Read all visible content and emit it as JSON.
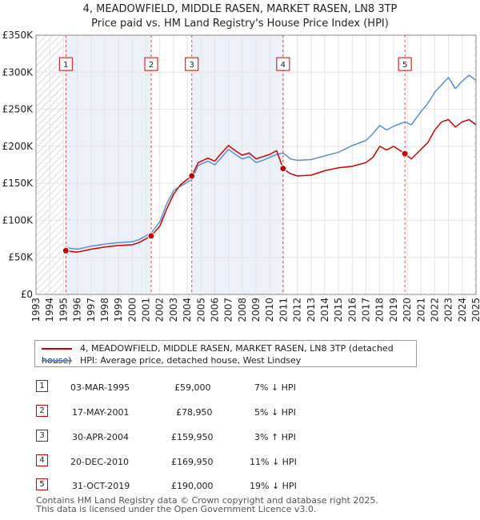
{
  "chart_data": {
    "type": "line",
    "title": "4, MEADOWFIELD, MIDDLE RASEN, MARKET RASEN, LN8 3TP",
    "subtitle": "Price paid vs. HM Land Registry's House Price Index (HPI)",
    "xlim": [
      1993,
      2025
    ],
    "ylim": [
      0,
      350000
    ],
    "y_ticks": [
      0,
      50000,
      100000,
      150000,
      200000,
      250000,
      300000,
      350000
    ],
    "y_tick_labels": [
      "£0",
      "£50K",
      "£100K",
      "£150K",
      "£200K",
      "£250K",
      "£300K",
      "£350K"
    ],
    "x_tick_labels": [
      "1993",
      "1994",
      "1995",
      "1996",
      "1997",
      "1998",
      "1999",
      "2000",
      "2001",
      "2002",
      "2003",
      "2004",
      "2005",
      "2006",
      "2007",
      "2008",
      "2009",
      "2010",
      "2011",
      "2012",
      "2013",
      "2014",
      "2015",
      "2016",
      "2017",
      "2018",
      "2019",
      "2020",
      "2021",
      "2022",
      "2023",
      "2024",
      "2025"
    ],
    "grid": true,
    "series": [
      {
        "name": "4, MEADOWFIELD, MIDDLE RASEN, MARKET RASEN, LN8 3TP (detached house)",
        "color": "#cc0000",
        "x": [
          1995.17,
          1996,
          1997,
          1998,
          1999,
          2000,
          2000.5,
          2001.38,
          2002,
          2002.5,
          2003,
          2003.5,
          2004.33,
          2004.8,
          2005.5,
          2006,
          2006.5,
          2007,
          2007.5,
          2008,
          2008.5,
          2009,
          2009.5,
          2010,
          2010.5,
          2010.97,
          2011.5,
          2012,
          2013,
          2014,
          2015,
          2016,
          2017,
          2017.5,
          2018,
          2018.5,
          2019,
          2019.83,
          2020.3,
          2021,
          2021.5,
          2022,
          2022.5,
          2023,
          2023.5,
          2024,
          2024.5,
          2025
        ],
        "values": [
          59000,
          57000,
          61000,
          64000,
          66000,
          67000,
          70000,
          78950,
          92000,
          115000,
          135000,
          148000,
          159950,
          178000,
          184000,
          180000,
          191000,
          201000,
          194000,
          188000,
          191000,
          183000,
          186000,
          189000,
          194000,
          169950,
          163000,
          160000,
          161000,
          167000,
          171000,
          173000,
          178000,
          185000,
          200000,
          195000,
          200000,
          190000,
          183000,
          196000,
          205000,
          222000,
          233000,
          236000,
          226000,
          233000,
          236000,
          229000
        ]
      },
      {
        "name": "HPI: Average price, detached house, West Lindsey",
        "color": "#5b8fd0",
        "x": [
          1995.17,
          1996,
          1997,
          1998,
          1999,
          2000,
          2000.5,
          2001.38,
          2002,
          2002.5,
          2003,
          2003.5,
          2004.33,
          2004.8,
          2005.5,
          2006,
          2006.5,
          2007,
          2007.5,
          2008,
          2008.5,
          2009,
          2009.5,
          2010,
          2010.5,
          2010.97,
          2011.5,
          2012,
          2013,
          2014,
          2015,
          2016,
          2017,
          2017.5,
          2018,
          2018.5,
          2019,
          2019.83,
          2020.3,
          2021,
          2021.5,
          2022,
          2022.5,
          2023,
          2023.5,
          2024,
          2024.5,
          2025
        ],
        "values": [
          63000,
          61000,
          65000,
          68000,
          70000,
          71000,
          74000,
          83000,
          98000,
          122000,
          140000,
          146000,
          155000,
          174000,
          180000,
          175000,
          185000,
          196000,
          189000,
          183000,
          186000,
          178000,
          181000,
          185000,
          189000,
          191000,
          183000,
          181000,
          182000,
          187000,
          192000,
          201000,
          208000,
          217000,
          228000,
          222000,
          227000,
          233000,
          229000,
          247000,
          258000,
          273000,
          283000,
          293000,
          278000,
          288000,
          296000,
          289000
        ]
      }
    ],
    "sales": [
      {
        "num": "1",
        "x": 1995.17,
        "value": 59000
      },
      {
        "num": "2",
        "x": 2001.38,
        "value": 78950
      },
      {
        "num": "3",
        "x": 2004.33,
        "value": 159950
      },
      {
        "num": "4",
        "x": 2010.97,
        "value": 169950
      },
      {
        "num": "5",
        "x": 2019.83,
        "value": 190000
      }
    ],
    "hatch_ranges": [
      [
        1993,
        1995.0
      ],
      [
        2024.83,
        2025
      ]
    ]
  },
  "table": {
    "rows": [
      {
        "num": "1",
        "date": "03-MAR-1995",
        "price": "£59,000",
        "hpi": "7% ↓ HPI"
      },
      {
        "num": "2",
        "date": "17-MAY-2001",
        "price": "£78,950",
        "hpi": "5% ↓ HPI"
      },
      {
        "num": "3",
        "date": "30-APR-2004",
        "price": "£159,950",
        "hpi": "3% ↑ HPI"
      },
      {
        "num": "4",
        "date": "20-DEC-2010",
        "price": "£169,950",
        "hpi": "11% ↓ HPI"
      },
      {
        "num": "5",
        "date": "31-OCT-2019",
        "price": "£190,000",
        "hpi": "19% ↓ HPI"
      }
    ]
  },
  "footer": {
    "line1": "Contains HM Land Registry data © Crown copyright and database right 2025.",
    "line2": "This data is licensed under the Open Government Licence v3.0."
  }
}
